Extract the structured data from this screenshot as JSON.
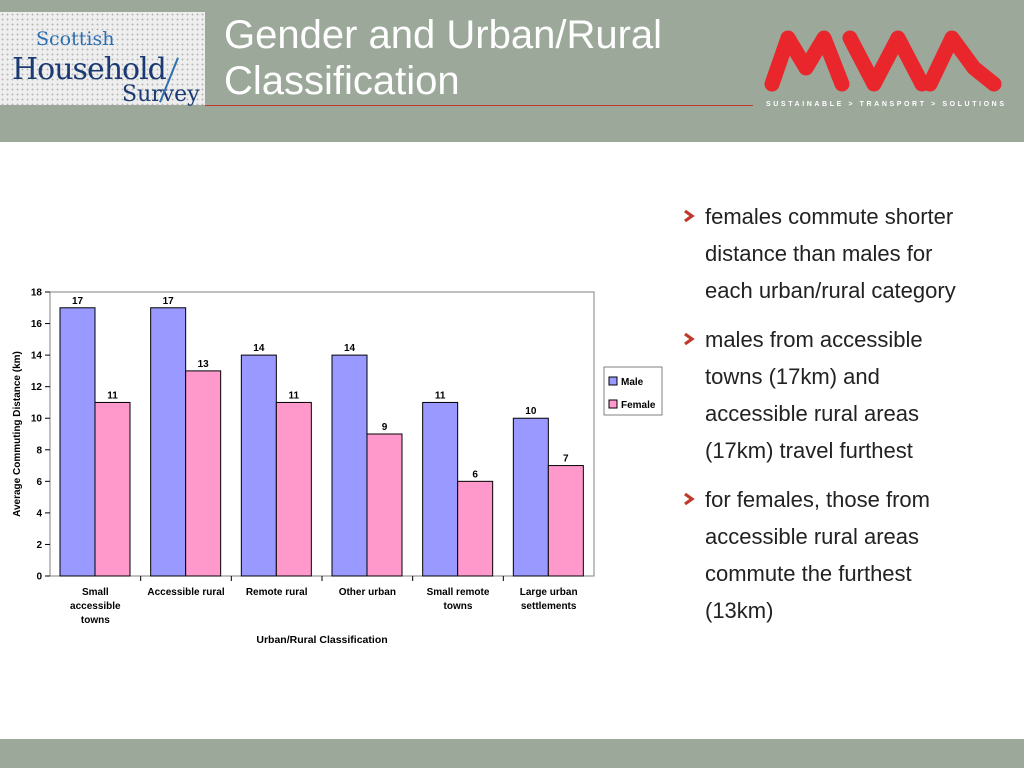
{
  "slide": {
    "title": "Gender and Urban/Rural Classification"
  },
  "logo": {
    "line1": "Scottish",
    "line2": "Household",
    "line3": "Survey",
    "brand": "MVA",
    "tagline": "SUSTAINABLE > TRANSPORT > SOLUTIONS"
  },
  "colors": {
    "header_bg": "#9ba89a",
    "male": "#9999ff",
    "female": "#ff99cc",
    "brand_red": "#e8262b"
  },
  "bullets": [
    "females commute shorter distance than males for each urban/rural category",
    "males from accessible towns (17km) and accessible rural areas (17km) travel furthest",
    "for females, those from accessible rural areas commute the furthest (13km)"
  ],
  "chart_data": {
    "type": "bar",
    "title": "",
    "xlabel": "Urban/Rural Classification",
    "ylabel": "Average Commuting Distance (km)",
    "ylim": [
      0,
      18
    ],
    "yticks": [
      0,
      2,
      4,
      6,
      8,
      10,
      12,
      14,
      16,
      18
    ],
    "grid": false,
    "legend": "right",
    "categories": [
      [
        "Small",
        "accessible",
        "towns"
      ],
      [
        "Accessible rural"
      ],
      [
        "Remote rural"
      ],
      [
        "Other urban"
      ],
      [
        "Small remote",
        "towns"
      ],
      [
        "Large urban",
        "settlements"
      ]
    ],
    "series": [
      {
        "name": "Male",
        "color": "#9999ff",
        "values": [
          17,
          17,
          14,
          14,
          11,
          10
        ]
      },
      {
        "name": "Female",
        "color": "#ff99cc",
        "values": [
          11,
          13,
          11,
          9,
          6,
          7
        ]
      }
    ]
  }
}
